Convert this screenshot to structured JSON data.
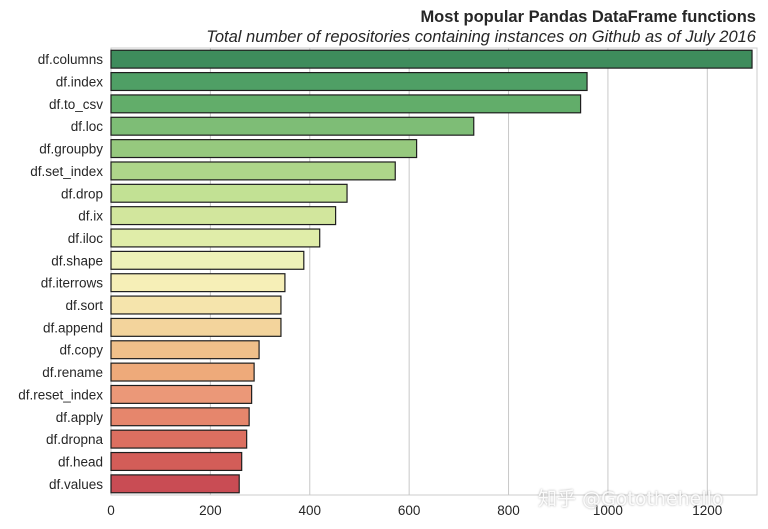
{
  "chart_data": {
    "type": "bar",
    "orientation": "horizontal",
    "title": "Most popular Pandas DataFrame functions",
    "subtitle": "Total number of repositories containing instances on Github as of July 2016",
    "categories": [
      "df.columns",
      "df.index",
      "df.to_csv",
      "df.loc",
      "df.groupby",
      "df.set_index",
      "df.drop",
      "df.ix",
      "df.iloc",
      "df.shape",
      "df.iterrows",
      "df.sort",
      "df.append",
      "df.copy",
      "df.rename",
      "df.reset_index",
      "df.apply",
      "df.dropna",
      "df.head",
      "df.values"
    ],
    "values": [
      1290,
      958,
      945,
      730,
      615,
      572,
      475,
      452,
      420,
      388,
      350,
      342,
      342,
      298,
      288,
      283,
      278,
      273,
      263,
      258
    ],
    "xlim": [
      0,
      1300
    ],
    "xticks": [
      0,
      200,
      400,
      600,
      800,
      1000,
      1200
    ],
    "grid": true,
    "colors": [
      "#3e8c5c",
      "#4f9f65",
      "#62ad6a",
      "#7ebd76",
      "#96c97e",
      "#aed68a",
      "#c2e194",
      "#d2e69d",
      "#e0eda9",
      "#eef2b8",
      "#f6efb7",
      "#f5e4ac",
      "#f3d49c",
      "#f0c08a",
      "#eeaa7a",
      "#eb9878",
      "#e6866c",
      "#dc6f60",
      "#d35d58",
      "#c94c54"
    ]
  },
  "watermark": "知乎 @Gotothehello"
}
